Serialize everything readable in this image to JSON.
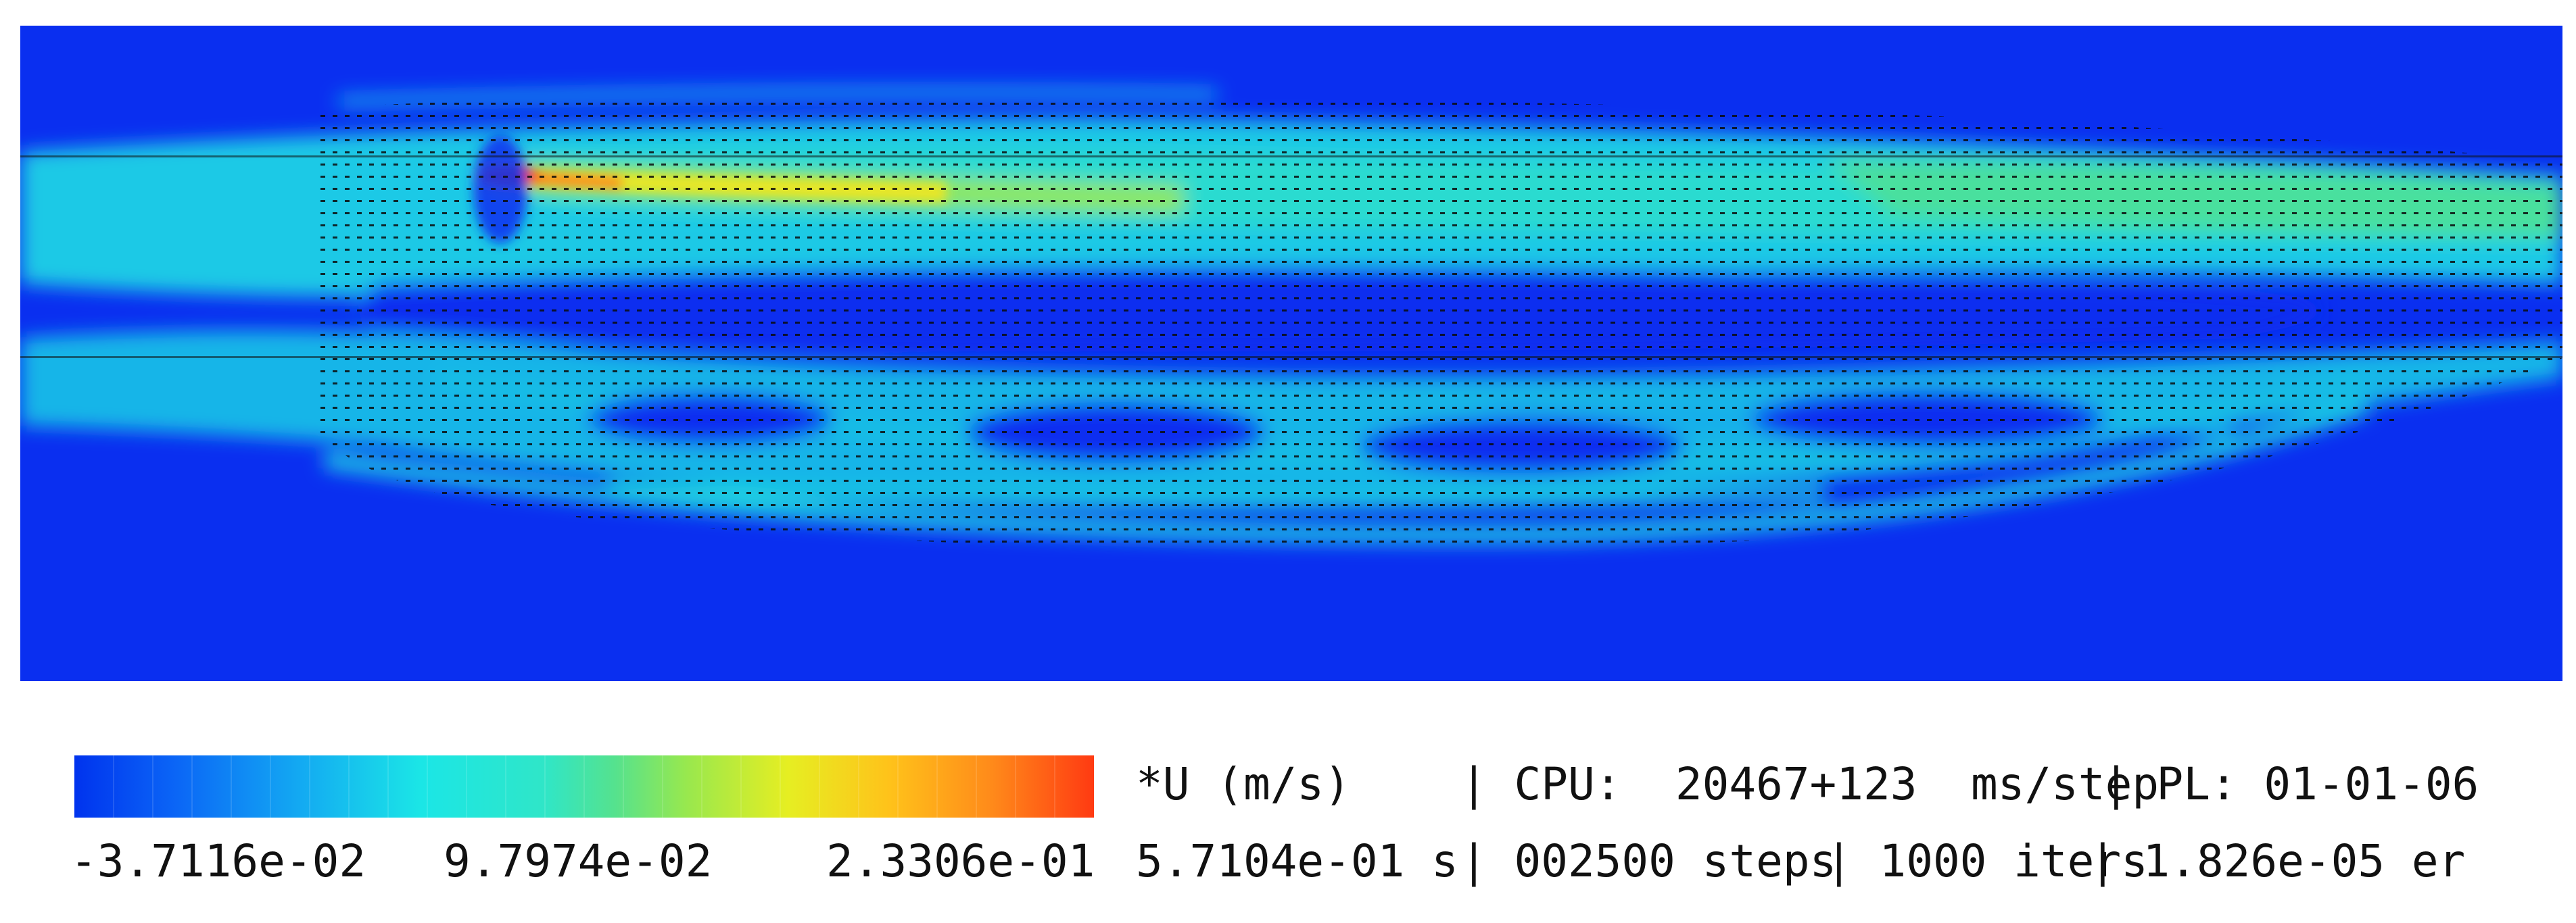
{
  "colorbar": {
    "min_label": "-3.7116e-02",
    "mid_label": "9.7974e-02",
    "max_label": "2.3306e-01",
    "stops": [
      "#0033ee",
      "#0b66f6",
      "#13a9f2",
      "#1be6e6",
      "#2fe6c8",
      "#55e28e",
      "#98e84e",
      "#e6ee22",
      "#ffc21a",
      "#ff8a1a",
      "#ff3a12"
    ]
  },
  "field": {
    "background_color": "#0a2ff0",
    "vector_color": "#0b0b0b"
  },
  "status": {
    "variable": "*U (m/s)",
    "cpu": "| CPU:  20467+123  ms/step",
    "pl": "| PL: 01-01-06",
    "time": "5.7104e-01 s",
    "steps": "| 002500 steps",
    "iters": "| 1000 iters",
    "error": "| 1.826e-05 er"
  }
}
